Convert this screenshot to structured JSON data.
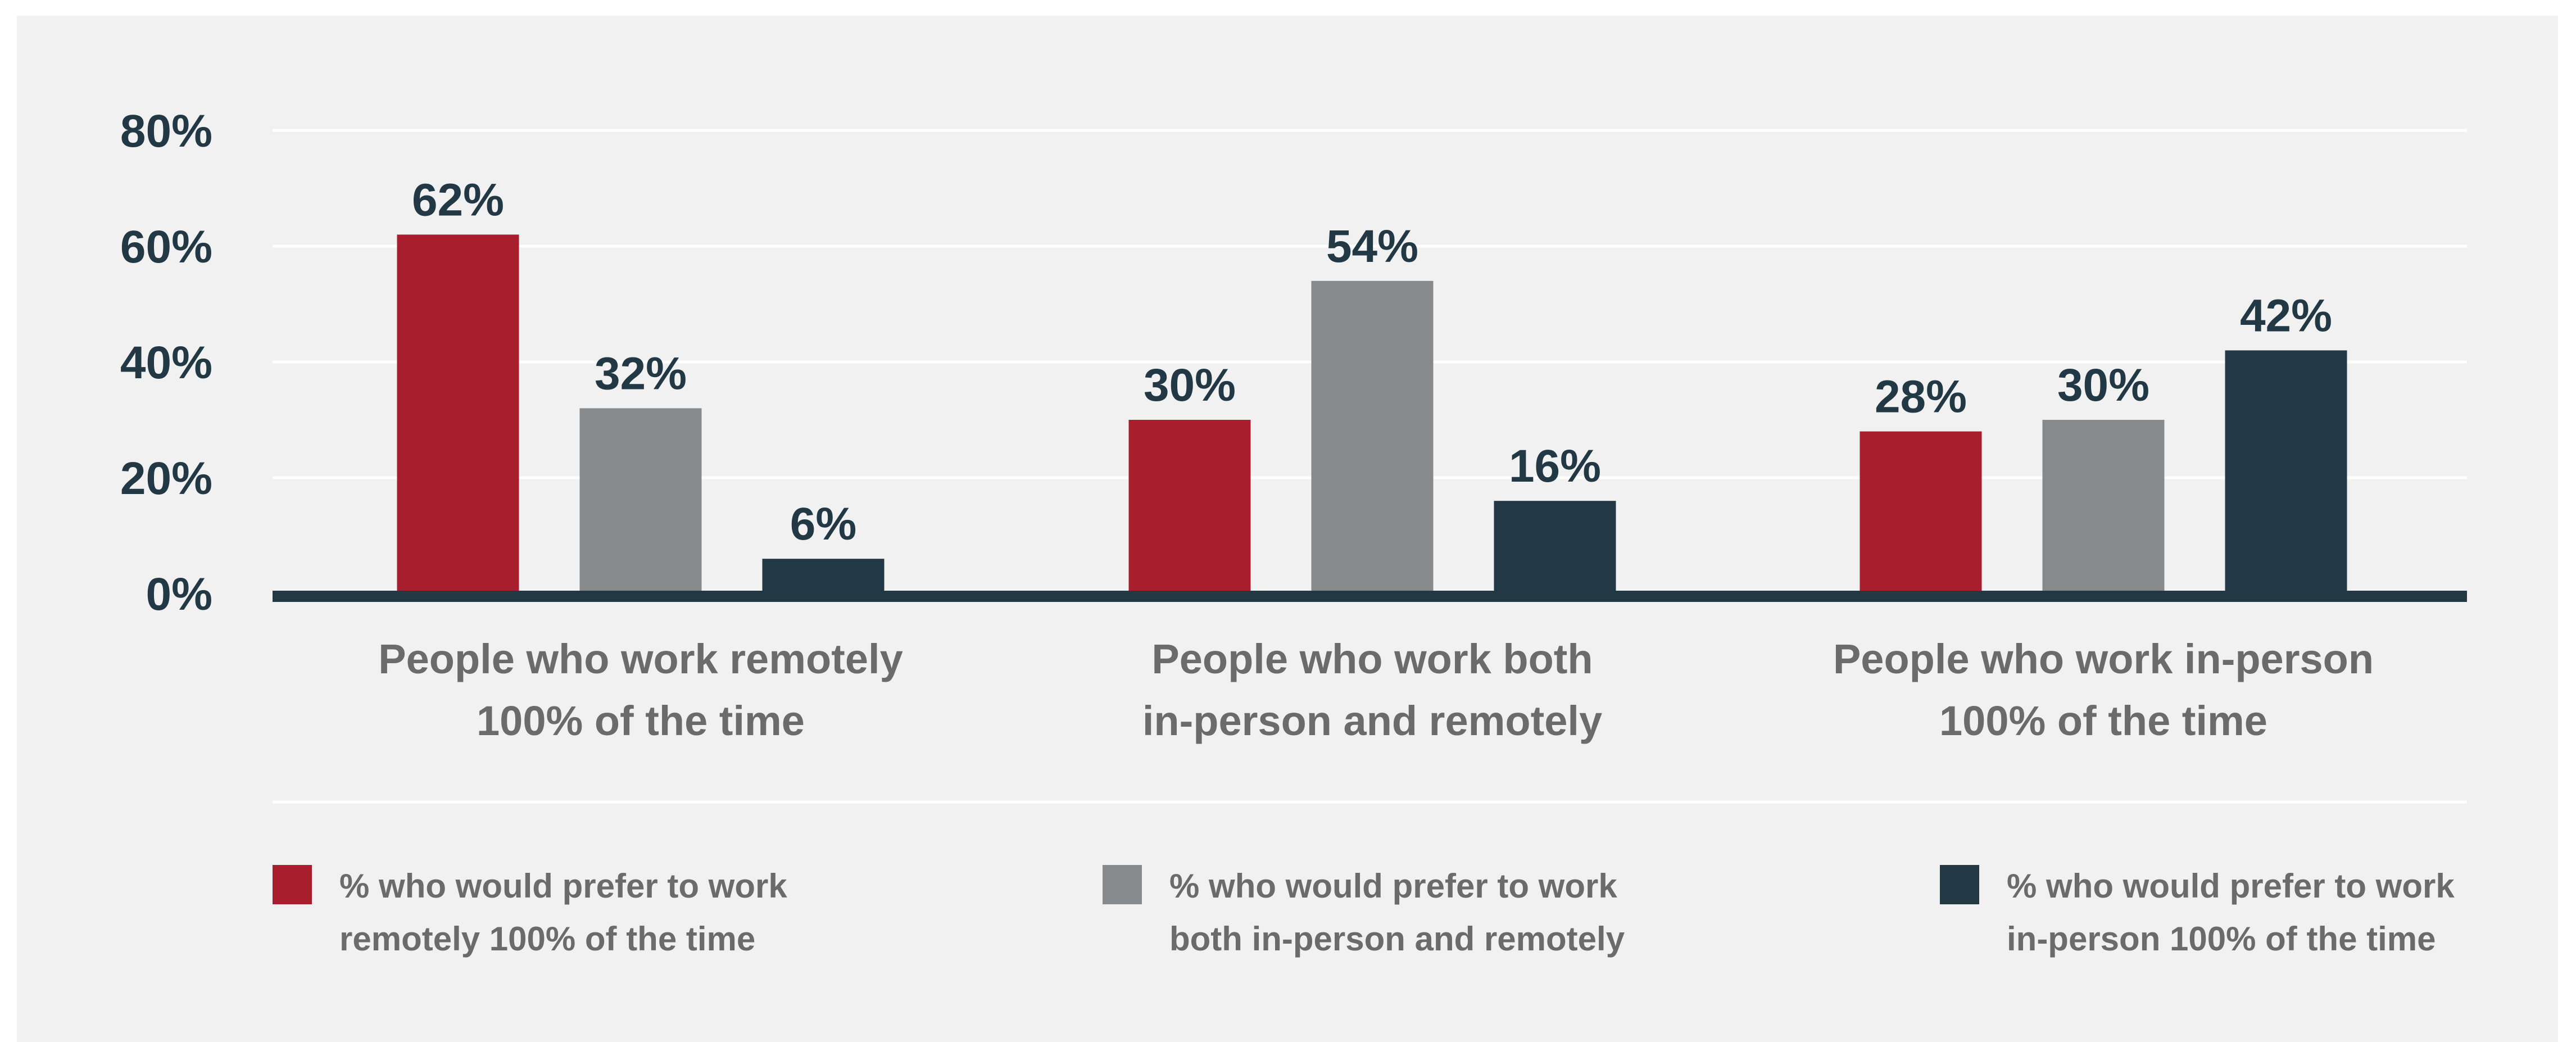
{
  "chart_data": {
    "type": "bar",
    "categories": [
      [
        "People who work remotely",
        "100% of the time"
      ],
      [
        "People who work both",
        "in-person and remotely"
      ],
      [
        "People who work in-person",
        "100% of the time"
      ]
    ],
    "series": [
      {
        "name": "% who would prefer to work remotely 100% of the time",
        "legend_lines": [
          "% who would prefer to work",
          "remotely 100% of the time"
        ],
        "color": "#a81e2d",
        "values": [
          62,
          30,
          28
        ],
        "labels": [
          "62%",
          "30%",
          "28%"
        ]
      },
      {
        "name": "% who would prefer to work both in-person and remotely",
        "legend_lines": [
          "% who would prefer to work",
          "both in-person and remotely"
        ],
        "color": "#878a8c",
        "values": [
          32,
          54,
          30
        ],
        "labels": [
          "32%",
          "54%",
          "30%"
        ]
      },
      {
        "name": "% who would prefer to work in-person 100% of the time",
        "legend_lines": [
          "% who would prefer to work",
          "in-person 100% of the time"
        ],
        "color": "#233845",
        "values": [
          6,
          16,
          42
        ],
        "labels": [
          "6%",
          "16%",
          "42%"
        ]
      }
    ],
    "yticks": [
      0,
      20,
      40,
      60,
      80
    ],
    "ytick_labels": [
      "0%",
      "20%",
      "40%",
      "60%",
      "80%"
    ],
    "ylim": [
      0,
      80
    ],
    "grid": true,
    "legend": "bottom",
    "title": "",
    "xlabel": "",
    "ylabel": ""
  },
  "colors": {
    "background": "#f1f1f1",
    "gridline": "#ffffff",
    "axis": "#233845",
    "tick_text": "#233845",
    "category_text": "#6b6b6b"
  }
}
